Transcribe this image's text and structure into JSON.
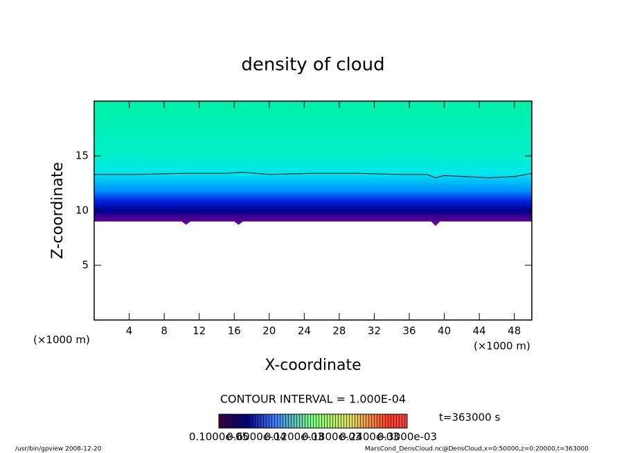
{
  "chart_data": {
    "type": "contour",
    "title": "density of cloud",
    "x_label": "X-coordinate",
    "y_label": "Z-coordinate",
    "x_unit": "(×1000 m)",
    "y_unit": "(×1000 m)",
    "xlim": [
      0,
      50
    ],
    "ylim": [
      0,
      20
    ],
    "xticks": [
      4,
      8,
      12,
      16,
      20,
      24,
      28,
      32,
      36,
      40,
      44,
      48
    ],
    "yticks": [
      5,
      10,
      15
    ],
    "contour": {
      "x": [
        0,
        5,
        10,
        15,
        17,
        20,
        25,
        30,
        35,
        38,
        39,
        40,
        45,
        48,
        50
      ],
      "z": [
        13.3,
        13.3,
        13.4,
        13.4,
        13.5,
        13.3,
        13.4,
        13.4,
        13.3,
        13.3,
        13.0,
        13.2,
        13.0,
        13.1,
        13.4
      ]
    },
    "cloud_base": {
      "x": [
        0,
        10,
        10.5,
        11,
        16,
        16.5,
        17,
        38.5,
        39,
        39.5,
        50
      ],
      "z": [
        9,
        9,
        8.7,
        9,
        9,
        8.7,
        9,
        9,
        8.6,
        9,
        9
      ]
    },
    "contour_interval": "CONTOUR INTERVAL = 1.000E-04",
    "time": "t=363000 s",
    "colorbar_labels": [
      "0.1000e-05",
      "0.6000e-04",
      "0.1200e-03",
      "0.1800e-03",
      "0.2400e-03",
      "0.3000e-03"
    ],
    "footer_left": "/usr/bin/gpview   2008-12-20",
    "footer_right": "MarsCond_DensCloud.nc@DensCloud,x=0:50000,z=0:20000,t=363000"
  }
}
